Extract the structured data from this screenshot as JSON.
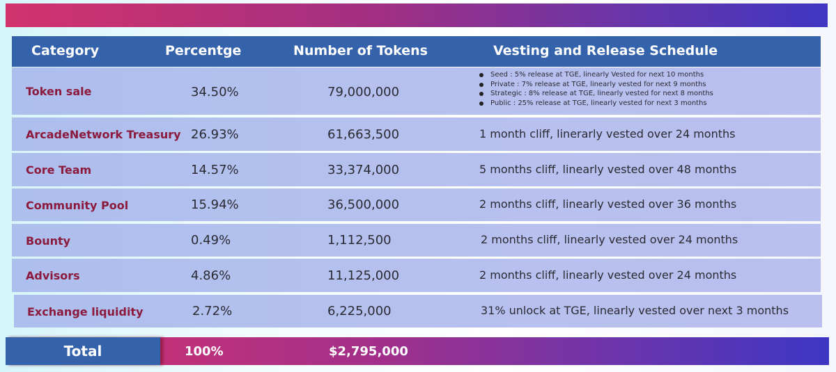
{
  "headers": {
    "category": "Category",
    "percentage": "Percentge",
    "tokens": "Number of Tokens",
    "vesting": "Vesting and Release Schedule"
  },
  "rows": [
    {
      "category": "Token sale",
      "percentage": "34.50%",
      "tokens": "79,000,000",
      "vesting_items": [
        "Seed : 5% release at TGE, linearly Vested for next 10 months",
        "Private : 7% release at TGE, linearly vested for next 9 months",
        "Strategic : 8% release at TGE, linearly vested for next 8 months",
        "Public : 25% release at TGE, linearly vested for next 3 months"
      ]
    },
    {
      "category": "ArcadeNetwork Treasury",
      "percentage": "26.93%",
      "tokens": "61,663,500",
      "vesting": "1 month cliff, linerarly vested over 24 months"
    },
    {
      "category": "Core Team",
      "percentage": "14.57%",
      "tokens": "33,374,000",
      "vesting": "5 months cliff, linearly vested over 48 months"
    },
    {
      "category": "Community Pool",
      "percentage": "15.94%",
      "tokens": "36,500,000",
      "vesting": "2 months cliff, linearly vested over 36 months"
    },
    {
      "category": "Bounty",
      "percentage": "0.49%",
      "tokens": "1,112,500",
      "vesting": "2 months cliff, linearly vested over 24 months"
    },
    {
      "category": "Advisors",
      "percentage": "4.86%",
      "tokens": "11,125,000",
      "vesting": "2 months cliff, linearly vested over 24 months"
    },
    {
      "category": "Exchange liquidity",
      "percentage": "2.72%",
      "tokens": "6,225,000",
      "vesting": "31% unlock at TGE, linearly vested over next 3 months"
    }
  ],
  "total": {
    "label": "Total",
    "percentage": "100%",
    "tokens": "$2,795,000"
  }
}
